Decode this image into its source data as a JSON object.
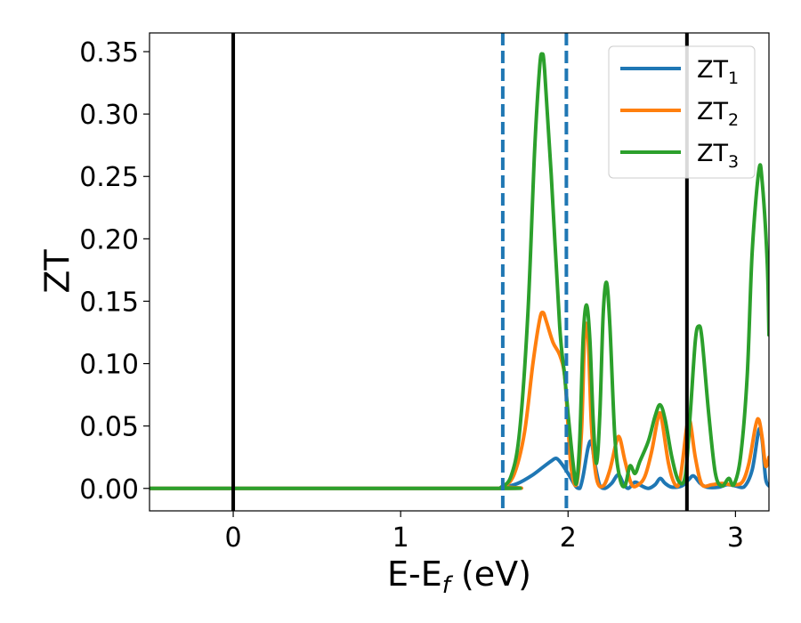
{
  "chart_data": {
    "type": "line",
    "title": "",
    "xlabel": {
      "main": "E-E",
      "sub": "f",
      "suffix": " (eV)"
    },
    "ylabel": "ZT",
    "xlim": [
      -0.5,
      3.2
    ],
    "ylim": [
      -0.018,
      0.365
    ],
    "xticks": [
      0,
      1,
      2,
      3
    ],
    "xtick_labels": [
      "0",
      "1",
      "2",
      "3"
    ],
    "yticks": [
      0.0,
      0.05,
      0.1,
      0.15,
      0.2,
      0.25,
      0.3,
      0.35
    ],
    "ytick_labels": [
      "0.00",
      "0.05",
      "0.10",
      "0.15",
      "0.20",
      "0.25",
      "0.30",
      "0.35"
    ],
    "grid": false,
    "legend_position": "top-right",
    "vertical_lines": [
      {
        "x": 0.0,
        "style": "solid",
        "color": "#000000"
      },
      {
        "x": 2.71,
        "style": "solid",
        "color": "#000000"
      },
      {
        "x": 1.61,
        "style": "dashed",
        "color": "#1f77b4"
      },
      {
        "x": 1.99,
        "style": "dashed",
        "color": "#1f77b4"
      }
    ],
    "series": [
      {
        "name": "ZT",
        "name_sub": "1",
        "color": "#1f77b4",
        "points": [
          [
            -0.5,
            0.0
          ],
          [
            1.55,
            0.0
          ],
          [
            1.62,
            0.001
          ],
          [
            1.7,
            0.004
          ],
          [
            1.78,
            0.01
          ],
          [
            1.85,
            0.017
          ],
          [
            1.9,
            0.022
          ],
          [
            1.93,
            0.024
          ],
          [
            1.96,
            0.02
          ],
          [
            2.0,
            0.012
          ],
          [
            2.03,
            0.005
          ],
          [
            2.05,
            0.001
          ],
          [
            2.07,
            0.0
          ],
          [
            2.09,
            0.01
          ],
          [
            2.12,
            0.033
          ],
          [
            2.14,
            0.037
          ],
          [
            2.16,
            0.02
          ],
          [
            2.19,
            0.002
          ],
          [
            2.22,
            0.0
          ],
          [
            2.26,
            0.004
          ],
          [
            2.3,
            0.011
          ],
          [
            2.33,
            0.004
          ],
          [
            2.36,
            0.0
          ],
          [
            2.4,
            0.005
          ],
          [
            2.44,
            0.002
          ],
          [
            2.48,
            0.0
          ],
          [
            2.52,
            0.003
          ],
          [
            2.55,
            0.008
          ],
          [
            2.58,
            0.004
          ],
          [
            2.62,
            0.001
          ],
          [
            2.68,
            0.002
          ],
          [
            2.72,
            0.007
          ],
          [
            2.75,
            0.01
          ],
          [
            2.79,
            0.004
          ],
          [
            2.83,
            0.001
          ],
          [
            2.9,
            0.001
          ],
          [
            2.95,
            0.003
          ],
          [
            3.0,
            0.002
          ],
          [
            3.05,
            0.001
          ],
          [
            3.1,
            0.015
          ],
          [
            3.14,
            0.047
          ],
          [
            3.16,
            0.038
          ],
          [
            3.18,
            0.008
          ],
          [
            3.2,
            0.002
          ]
        ]
      },
      {
        "name": "ZT",
        "name_sub": "2",
        "color": "#ff7f0e",
        "points": [
          [
            -0.5,
            0.0
          ],
          [
            1.55,
            0.0
          ],
          [
            1.62,
            0.002
          ],
          [
            1.68,
            0.012
          ],
          [
            1.74,
            0.045
          ],
          [
            1.79,
            0.1
          ],
          [
            1.83,
            0.135
          ],
          [
            1.85,
            0.141
          ],
          [
            1.87,
            0.134
          ],
          [
            1.91,
            0.117
          ],
          [
            1.95,
            0.107
          ],
          [
            1.98,
            0.09
          ],
          [
            2.0,
            0.05
          ],
          [
            2.02,
            0.015
          ],
          [
            2.05,
            0.003
          ],
          [
            2.08,
            0.045
          ],
          [
            2.1,
            0.125
          ],
          [
            2.12,
            0.12
          ],
          [
            2.14,
            0.05
          ],
          [
            2.17,
            0.008
          ],
          [
            2.21,
            0.002
          ],
          [
            2.25,
            0.015
          ],
          [
            2.29,
            0.038
          ],
          [
            2.31,
            0.04
          ],
          [
            2.34,
            0.022
          ],
          [
            2.38,
            0.003
          ],
          [
            2.42,
            0.003
          ],
          [
            2.46,
            0.01
          ],
          [
            2.5,
            0.03
          ],
          [
            2.54,
            0.058
          ],
          [
            2.56,
            0.055
          ],
          [
            2.6,
            0.02
          ],
          [
            2.64,
            0.003
          ],
          [
            2.67,
            0.008
          ],
          [
            2.71,
            0.05
          ],
          [
            2.73,
            0.053
          ],
          [
            2.76,
            0.025
          ],
          [
            2.8,
            0.003
          ],
          [
            2.86,
            0.003
          ],
          [
            2.92,
            0.004
          ],
          [
            2.98,
            0.003
          ],
          [
            3.04,
            0.005
          ],
          [
            3.08,
            0.02
          ],
          [
            3.12,
            0.05
          ],
          [
            3.14,
            0.055
          ],
          [
            3.16,
            0.04
          ],
          [
            3.18,
            0.018
          ],
          [
            3.2,
            0.025
          ]
        ]
      },
      {
        "name": "ZT",
        "name_sub": "3",
        "color": "#2ca02c",
        "points": [
          [
            -0.5,
            0.0
          ],
          [
            1.55,
            0.0
          ],
          [
            1.6,
            0.001
          ],
          [
            1.66,
            0.01
          ],
          [
            1.71,
            0.045
          ],
          [
            1.76,
            0.14
          ],
          [
            1.8,
            0.27
          ],
          [
            1.83,
            0.337
          ],
          [
            1.845,
            0.348
          ],
          [
            1.86,
            0.335
          ],
          [
            1.9,
            0.25
          ],
          [
            1.95,
            0.13
          ],
          [
            1.98,
            0.09
          ],
          [
            2.0,
            0.06
          ],
          [
            2.03,
            0.02
          ],
          [
            2.05,
            0.004
          ],
          [
            2.07,
            0.04
          ],
          [
            2.09,
            0.12
          ],
          [
            2.11,
            0.147
          ],
          [
            2.13,
            0.12
          ],
          [
            2.15,
            0.055
          ],
          [
            2.17,
            0.02
          ],
          [
            2.19,
            0.06
          ],
          [
            2.21,
            0.14
          ],
          [
            2.23,
            0.165
          ],
          [
            2.25,
            0.13
          ],
          [
            2.28,
            0.04
          ],
          [
            2.31,
            0.008
          ],
          [
            2.34,
            0.002
          ],
          [
            2.37,
            0.018
          ],
          [
            2.4,
            0.012
          ],
          [
            2.43,
            0.022
          ],
          [
            2.48,
            0.038
          ],
          [
            2.52,
            0.058
          ],
          [
            2.55,
            0.067
          ],
          [
            2.58,
            0.055
          ],
          [
            2.62,
            0.025
          ],
          [
            2.66,
            0.006
          ],
          [
            2.7,
            0.01
          ],
          [
            2.73,
            0.06
          ],
          [
            2.76,
            0.118
          ],
          [
            2.78,
            0.13
          ],
          [
            2.8,
            0.12
          ],
          [
            2.84,
            0.06
          ],
          [
            2.88,
            0.012
          ],
          [
            2.92,
            0.002
          ],
          [
            2.96,
            0.008
          ],
          [
            2.99,
            0.003
          ],
          [
            3.03,
            0.025
          ],
          [
            3.07,
            0.09
          ],
          [
            3.1,
            0.19
          ],
          [
            3.14,
            0.255
          ],
          [
            3.16,
            0.245
          ],
          [
            3.19,
            0.18
          ],
          [
            3.2,
            0.123
          ]
        ]
      }
    ]
  }
}
